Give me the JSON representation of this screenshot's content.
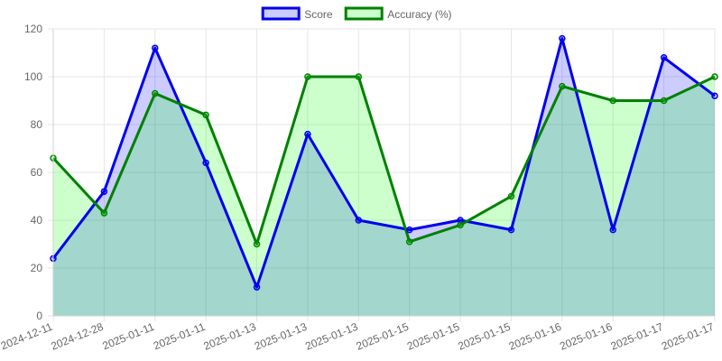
{
  "chart_data": {
    "type": "area",
    "categories": [
      "2024-12-11",
      "2024-12-28",
      "2025-01-11",
      "2025-01-11",
      "2025-01-13",
      "2025-01-13",
      "2025-01-13",
      "2025-01-15",
      "2025-01-15",
      "2025-01-15",
      "2025-01-16",
      "2025-01-16",
      "2025-01-17",
      "2025-01-17"
    ],
    "series": [
      {
        "name": "Score",
        "values": [
          24,
          52,
          112,
          64,
          12,
          76,
          40,
          36,
          40,
          36,
          116,
          36,
          108,
          92
        ],
        "line_color": "#0000ee",
        "fill_color": "rgba(0,0,255,0.2)"
      },
      {
        "name": "Accuracy (%)",
        "values": [
          66,
          43,
          93,
          84,
          30,
          100,
          100,
          31,
          38,
          50,
          96,
          90,
          90,
          100
        ],
        "line_color": "#008000",
        "fill_color": "rgba(0,255,0,0.2)"
      }
    ],
    "ylim": [
      0,
      120
    ],
    "yticks": [
      0,
      20,
      40,
      60,
      80,
      100,
      120
    ],
    "grid": true,
    "legend_position": "top-center",
    "title": "",
    "xlabel": "",
    "ylabel": ""
  }
}
